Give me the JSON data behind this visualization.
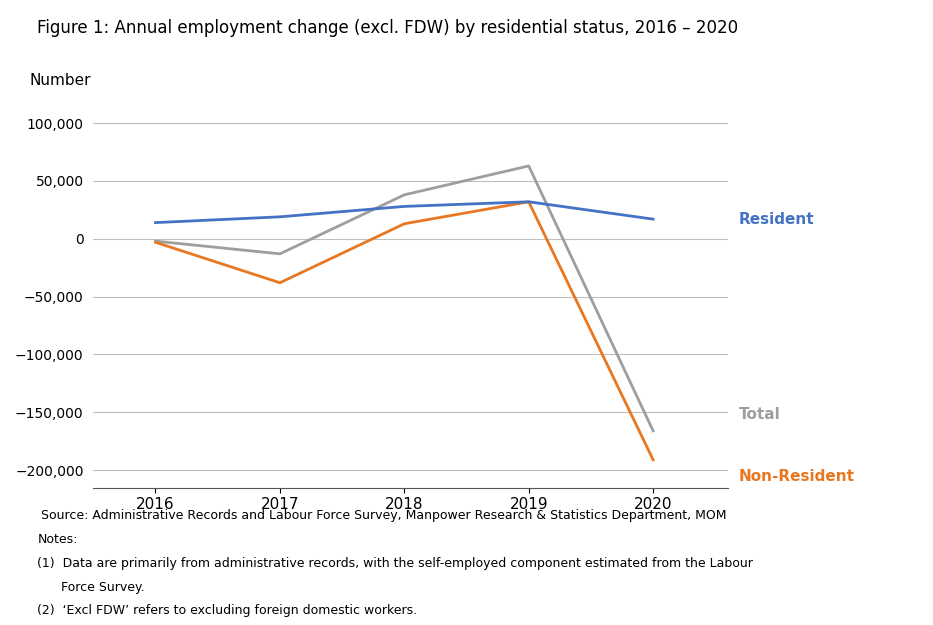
{
  "title": "Figure 1: Annual employment change (excl. FDW) by residential status, 2016 – 2020",
  "years": [
    2016,
    2017,
    2018,
    2019,
    2020
  ],
  "resident": [
    14000,
    19000,
    28000,
    32000,
    17000
  ],
  "non_resident": [
    -3000,
    -38000,
    13000,
    32000,
    -191000
  ],
  "total": [
    -2000,
    -13000,
    38000,
    63000,
    -166000
  ],
  "resident_color": "#4472C4",
  "non_resident_color": "#E87722",
  "total_color": "#9E9E9E",
  "ylabel": "Number",
  "ylim": [
    -215000,
    120000
  ],
  "yticks": [
    -200000,
    -150000,
    -100000,
    -50000,
    0,
    50000,
    100000
  ],
  "bg_color": "#ffffff",
  "grid_color": "#bfbfbf",
  "source_line": " Source: Administrative Records and Labour Force Survey, Manpower Research & Statistics Department, MOM",
  "note_line0": "Notes:",
  "note_line1": "(1)  Data are primarily from administrative records, with the self-employed component estimated from the Labour",
  "note_line2": "      Force Survey.",
  "note_line3": "(2)  ‘Excl FDW’ refers to excluding foreign domestic workers.",
  "label_resident": "Resident",
  "label_total": "Total",
  "label_non_resident": "Non-Resident",
  "line_width": 2.0
}
